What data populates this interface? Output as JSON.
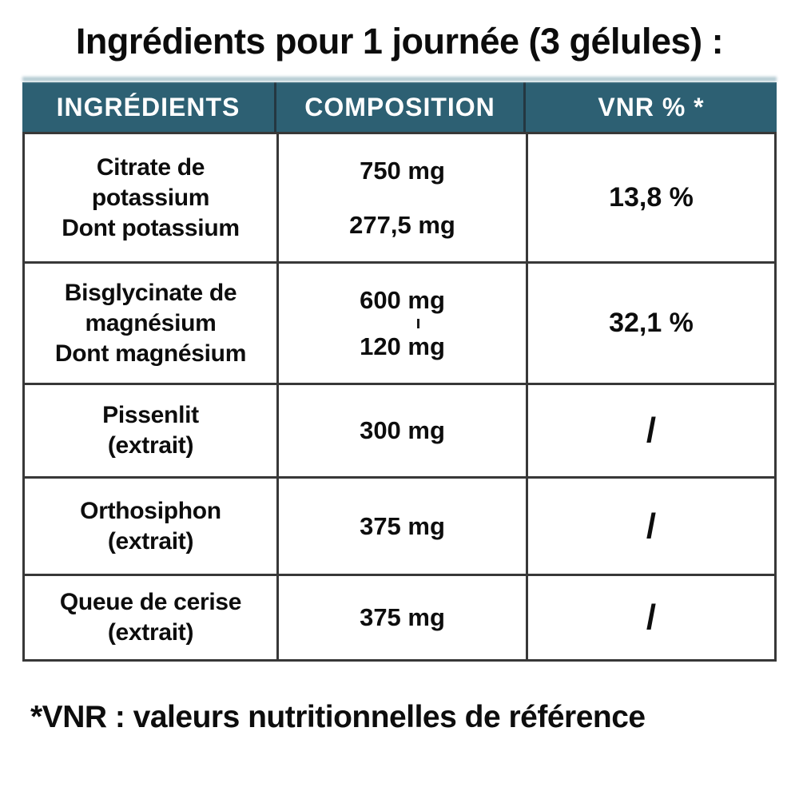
{
  "title": "Ingrédients pour 1 journée (3 gélules) :",
  "colors": {
    "header_bg": "#2d6073",
    "header_text": "#ffffff",
    "border": "#383838",
    "text": "#0d0d0d",
    "header_glow": "#b6ccd4"
  },
  "table": {
    "headers": [
      "INGRÉDIENTS",
      "COMPOSITION",
      "VNR % *"
    ],
    "rows": [
      {
        "ingredient_lines": [
          "Citrate de",
          "potassium",
          "Dont potassium"
        ],
        "composition_lines": [
          "750 mg",
          "277,5 mg"
        ],
        "vnr": "13,8 %"
      },
      {
        "ingredient_lines": [
          "Bisglycinate de",
          "magnésium",
          "Dont magnésium"
        ],
        "composition_lines": [
          "600 mg",
          "120 mg"
        ],
        "vnr": "32,1 %"
      },
      {
        "ingredient_lines": [
          "Pissenlit",
          "(extrait)"
        ],
        "composition_lines": [
          "300 mg"
        ],
        "vnr": "/"
      },
      {
        "ingredient_lines": [
          "Orthosiphon",
          "(extrait)"
        ],
        "composition_lines": [
          "375 mg"
        ],
        "vnr": "/"
      },
      {
        "ingredient_lines": [
          "Queue de cerise",
          "(extrait)"
        ],
        "composition_lines": [
          "375 mg"
        ],
        "vnr": "/"
      }
    ]
  },
  "footnote": "*VNR : valeurs nutritionnelles de référence"
}
